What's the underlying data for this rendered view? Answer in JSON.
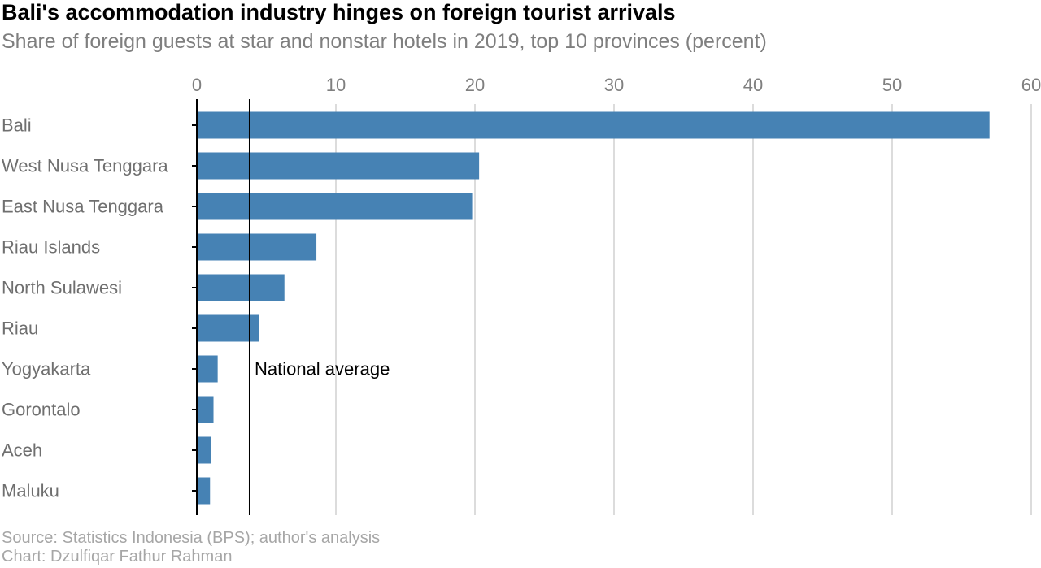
{
  "title": "Bali's accommodation industry hinges on foreign tourist arrivals",
  "subtitle": "Share of foreign guests at star and nonstar hotels in 2019, top 10 provinces (percent)",
  "source": "Source: Statistics Indonesia (BPS); author's analysis",
  "credit": "Chart: Dzulfiqar Fathur Rahman",
  "chart_data": {
    "type": "bar",
    "orientation": "horizontal",
    "categories": [
      "Bali",
      "West Nusa Tenggara",
      "East Nusa Tenggara",
      "Riau Islands",
      "North Sulawesi",
      "Riau",
      "Yogyakarta",
      "Gorontalo",
      "Aceh",
      "Maluku"
    ],
    "values": [
      57.0,
      20.3,
      19.8,
      8.6,
      6.3,
      4.5,
      1.5,
      1.2,
      1.0,
      0.95
    ],
    "xlim": [
      0,
      60
    ],
    "xticks": [
      0,
      10,
      20,
      30,
      40,
      50,
      60
    ],
    "x_axis_position": "top",
    "grid": true,
    "bar_color": "#4682b4",
    "reference_line": {
      "label": "National average",
      "value": 3.8
    }
  }
}
